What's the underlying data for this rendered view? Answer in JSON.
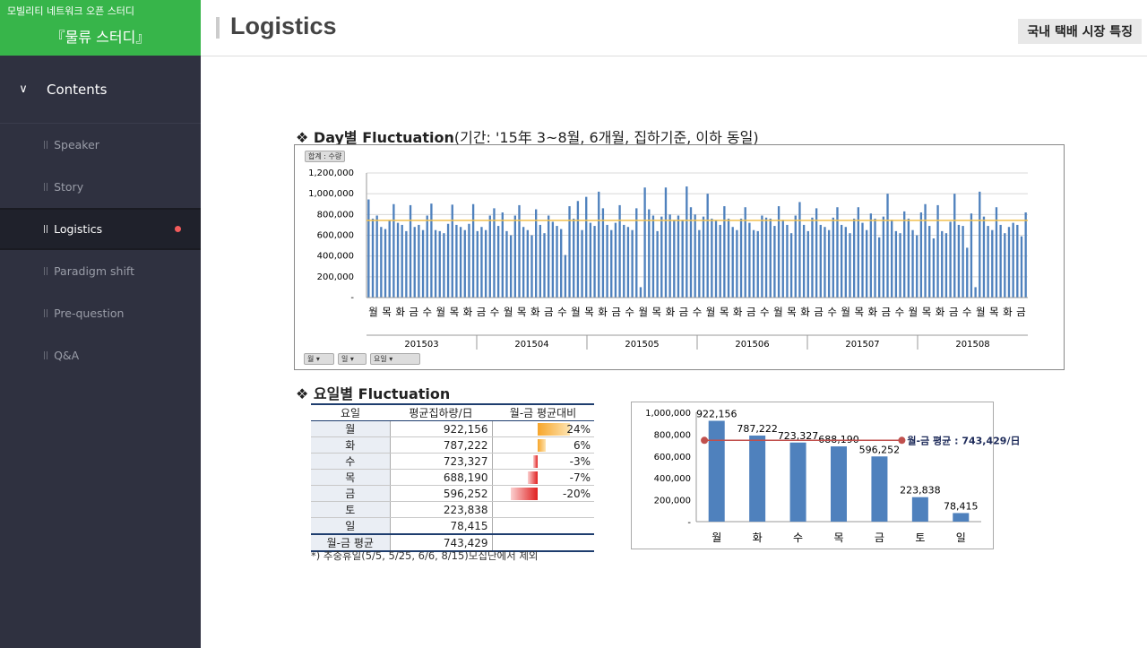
{
  "sidebar": {
    "org": "모빌리티 네트워크 오픈 스터디",
    "title": "『물류 스터디』",
    "contents_label": "Contents",
    "items": [
      {
        "label": "Speaker",
        "active": false
      },
      {
        "label": "Story",
        "active": false
      },
      {
        "label": "Logistics",
        "active": true
      },
      {
        "label": "Paradigm shift",
        "active": false
      },
      {
        "label": "Pre-question",
        "active": false
      },
      {
        "label": "Q&A",
        "active": false
      }
    ]
  },
  "header": {
    "title": "Logistics",
    "tag": "국내 택배 시장 특징"
  },
  "section1": {
    "bold": "❖ Day별  Fluctuation",
    "normal": "(기간:  '15年 3~8월, 6개월, 집하기준, 이하 동일)"
  },
  "section2": {
    "bold": "❖ 요일별 Fluctuation"
  },
  "daily_controls": {
    "top_button": "합계 : 수량",
    "filters": [
      "월",
      "일",
      "요일"
    ]
  },
  "table": {
    "headers": [
      "요일",
      "평균집하량/日",
      "월-금 평균대비"
    ],
    "rows": [
      {
        "day": "월",
        "value": "922,156",
        "pct": "24%"
      },
      {
        "day": "화",
        "value": "787,222",
        "pct": "6%"
      },
      {
        "day": "수",
        "value": "723,327",
        "pct": "-3%"
      },
      {
        "day": "목",
        "value": "688,190",
        "pct": "-7%"
      },
      {
        "day": "금",
        "value": "596,252",
        "pct": "-20%"
      },
      {
        "day": "토",
        "value": "223,838",
        "pct": ""
      },
      {
        "day": "일",
        "value": "78,415",
        "pct": ""
      }
    ],
    "avg": {
      "day": "월-금 평균",
      "value": "743,429"
    }
  },
  "note": "*) 추중휴일(5/5, 5/25, 6/6, 8/15)모집단에서 제외",
  "colors": {
    "accent": "#37b54a",
    "bar": "#4f81bd",
    "line": "#c0504d",
    "avg_line": "#f2c14e"
  },
  "chart_data": [
    {
      "type": "bar",
      "ylim": [
        0,
        1200000
      ],
      "y_ticks": [
        "1,200,000",
        "1,000,000",
        "800,000",
        "600,000",
        "400,000",
        "200,000",
        "-"
      ],
      "months": [
        "201503",
        "201504",
        "201505",
        "201506",
        "201507",
        "201508"
      ],
      "day_labels": [
        "월",
        "목",
        "화",
        "금",
        "수",
        "월",
        "목",
        "화",
        "금",
        "수",
        "월",
        "목",
        "화",
        "금",
        "수",
        "월",
        "목",
        "화",
        "금",
        "수",
        "월",
        "목",
        "화",
        "금",
        "수",
        "월",
        "목",
        "화",
        "금",
        "수",
        "월",
        "목",
        "화",
        "금",
        "수",
        "월",
        "목",
        "화",
        "금",
        "수",
        "월",
        "목",
        "화",
        "금",
        "수",
        "월",
        "목",
        "화",
        "금"
      ],
      "average_line": 743429,
      "values": [
        945000,
        760000,
        790000,
        680000,
        660000,
        740000,
        900000,
        720000,
        700000,
        640000,
        890000,
        680000,
        700000,
        650000,
        790000,
        905000,
        650000,
        640000,
        620000,
        710000,
        895000,
        700000,
        680000,
        650000,
        710000,
        900000,
        640000,
        680000,
        650000,
        790000,
        860000,
        690000,
        820000,
        640000,
        600000,
        790000,
        890000,
        680000,
        650000,
        600000,
        850000,
        700000,
        620000,
        790000,
        730000,
        690000,
        660000,
        410000,
        880000,
        760000,
        930000,
        650000,
        970000,
        720000,
        690000,
        1020000,
        860000,
        700000,
        650000,
        720000,
        890000,
        700000,
        680000,
        650000,
        860000,
        100000,
        1060000,
        850000,
        790000,
        640000,
        780000,
        1060000,
        800000,
        750000,
        790000,
        750000,
        1070000,
        870000,
        800000,
        650000,
        780000,
        1000000,
        760000,
        740000,
        700000,
        880000,
        760000,
        680000,
        650000,
        760000,
        870000,
        720000,
        650000,
        640000,
        790000,
        770000,
        760000,
        690000,
        880000,
        750000,
        700000,
        620000,
        790000,
        920000,
        700000,
        640000,
        770000,
        860000,
        700000,
        680000,
        650000,
        770000,
        870000,
        700000,
        680000,
        620000,
        760000,
        870000,
        720000,
        650000,
        810000,
        760000,
        580000,
        780000,
        1000000,
        750000,
        640000,
        620000,
        830000,
        760000,
        650000,
        600000,
        820000,
        900000,
        690000,
        570000,
        890000,
        640000,
        620000,
        730000,
        1000000,
        700000,
        690000,
        480000,
        810000,
        100000,
        1020000,
        780000,
        690000,
        650000,
        870000,
        700000,
        620000,
        680000,
        720000,
        700000,
        590000,
        820000
      ]
    },
    {
      "type": "bar",
      "categories": [
        "월",
        "화",
        "수",
        "목",
        "금",
        "토",
        "일"
      ],
      "values": [
        922156,
        787222,
        723327,
        688190,
        596252,
        223838,
        78415
      ],
      "data_labels": [
        "922,156",
        "787,222",
        "723,327",
        "688,190",
        "596,252",
        "223,838",
        "78,415"
      ],
      "ylim": [
        0,
        1000000
      ],
      "y_ticks": [
        "1,000,000",
        "800,000",
        "600,000",
        "400,000",
        "200,000",
        "-"
      ],
      "avg_value": 743429,
      "avg_label": "월-금 평균 : 743,429/日"
    }
  ]
}
